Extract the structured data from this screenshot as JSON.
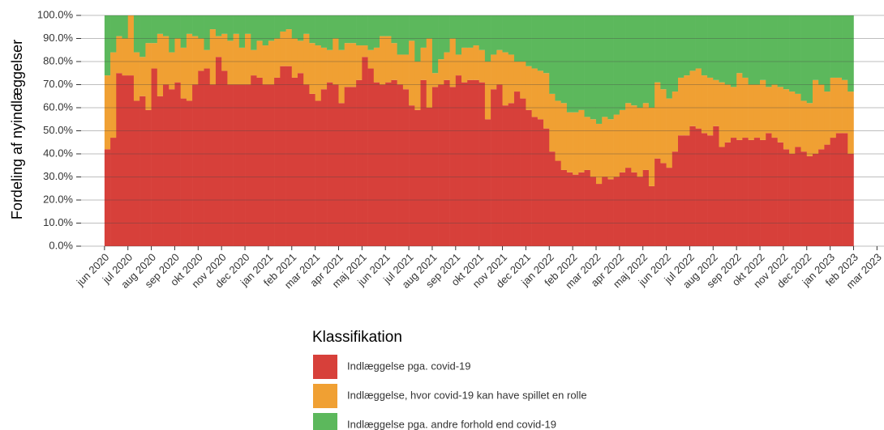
{
  "chart_data": {
    "type": "stacked-bar",
    "y_label": "Fordeling af nyindlæggelser",
    "legend_title": "Klassifikation",
    "legend_position": "bottom",
    "grid": true,
    "ylim": [
      0,
      100
    ],
    "yticks": [
      {
        "value": 0,
        "label": "0.0%"
      },
      {
        "value": 10,
        "label": "10.0%"
      },
      {
        "value": 20,
        "label": "20.0%"
      },
      {
        "value": 30,
        "label": "30.0%"
      },
      {
        "value": 40,
        "label": "40.0%"
      },
      {
        "value": 50,
        "label": "50.0%"
      },
      {
        "value": 60,
        "label": "60.0%"
      },
      {
        "value": 70,
        "label": "70.0%"
      },
      {
        "value": 80,
        "label": "80.0%"
      },
      {
        "value": 90,
        "label": "90.0%"
      },
      {
        "value": 100,
        "label": "100.0%"
      }
    ],
    "xlim": [
      -1,
      33.3
    ],
    "xticks": [
      {
        "value": 0,
        "label": "jun 2020"
      },
      {
        "value": 1,
        "label": "jul 2020"
      },
      {
        "value": 2,
        "label": "aug 2020"
      },
      {
        "value": 3,
        "label": "sep 2020"
      },
      {
        "value": 4,
        "label": "okt 2020"
      },
      {
        "value": 5,
        "label": "nov 2020"
      },
      {
        "value": 6,
        "label": "dec 2020"
      },
      {
        "value": 7,
        "label": "jan 2021"
      },
      {
        "value": 8,
        "label": "feb 2021"
      },
      {
        "value": 9,
        "label": "mar 2021"
      },
      {
        "value": 10,
        "label": "apr 2021"
      },
      {
        "value": 11,
        "label": "maj 2021"
      },
      {
        "value": 12,
        "label": "jun 2021"
      },
      {
        "value": 13,
        "label": "jul 2021"
      },
      {
        "value": 14,
        "label": "aug 2021"
      },
      {
        "value": 15,
        "label": "sep 2021"
      },
      {
        "value": 16,
        "label": "okt 2021"
      },
      {
        "value": 17,
        "label": "nov 2021"
      },
      {
        "value": 18,
        "label": "dec 2021"
      },
      {
        "value": 19,
        "label": "jan 2022"
      },
      {
        "value": 20,
        "label": "feb 2022"
      },
      {
        "value": 21,
        "label": "mar 2022"
      },
      {
        "value": 22,
        "label": "apr 2022"
      },
      {
        "value": 23,
        "label": "maj 2022"
      },
      {
        "value": 24,
        "label": "jun 2022"
      },
      {
        "value": 25,
        "label": "jul 2022"
      },
      {
        "value": 26,
        "label": "aug 2022"
      },
      {
        "value": 27,
        "label": "sep 2022"
      },
      {
        "value": 28,
        "label": "okt 2022"
      },
      {
        "value": 29,
        "label": "nov 2022"
      },
      {
        "value": 30,
        "label": "dec 2022"
      },
      {
        "value": 31,
        "label": "jan 2023"
      },
      {
        "value": 32,
        "label": "feb 2023"
      },
      {
        "value": 33,
        "label": "mar 2023"
      }
    ],
    "x": [
      0,
      0.25,
      0.5,
      0.75,
      1,
      1.25,
      1.5,
      1.75,
      2,
      2.25,
      2.5,
      2.75,
      3,
      3.25,
      3.5,
      3.75,
      4,
      4.25,
      4.5,
      4.75,
      5,
      5.25,
      5.5,
      5.75,
      6,
      6.25,
      6.5,
      6.75,
      7,
      7.25,
      7.5,
      7.75,
      8,
      8.25,
      8.5,
      8.75,
      9,
      9.25,
      9.5,
      9.75,
      10,
      10.25,
      10.5,
      10.75,
      11,
      11.25,
      11.5,
      11.75,
      12,
      12.25,
      12.5,
      12.75,
      13,
      13.25,
      13.5,
      13.75,
      14,
      14.25,
      14.5,
      14.75,
      15,
      15.25,
      15.5,
      15.75,
      16,
      16.25,
      16.5,
      16.75,
      17,
      17.25,
      17.5,
      17.75,
      18,
      18.25,
      18.5,
      18.75,
      19,
      19.25,
      19.5,
      19.75,
      20,
      20.25,
      20.5,
      20.75,
      21,
      21.25,
      21.5,
      21.75,
      22,
      22.25,
      22.5,
      22.75,
      23,
      23.25,
      23.5,
      23.75,
      24,
      24.25,
      24.5,
      24.75,
      25,
      25.25,
      25.5,
      25.75,
      26,
      26.25,
      26.5,
      26.75,
      27,
      27.25,
      27.5,
      27.75,
      28,
      28.25,
      28.5,
      28.75,
      29,
      29.25,
      29.5,
      29.75,
      30,
      30.25,
      30.5,
      30.75,
      31,
      31.25,
      31.5,
      31.75
    ],
    "series": [
      {
        "name": "Indlæggelse pga. covid-19",
        "color": "#d7403a",
        "values": [
          42,
          47,
          75,
          74,
          74,
          63,
          65,
          59,
          77,
          65,
          70,
          68,
          71,
          64,
          63,
          70,
          76,
          77,
          70,
          82,
          76,
          70,
          70,
          70,
          70,
          74,
          73,
          70,
          70,
          73,
          78,
          78,
          73,
          75,
          70,
          66,
          63,
          68,
          71,
          70,
          62,
          69,
          69,
          72,
          82,
          77,
          71,
          70,
          71,
          72,
          70,
          68,
          61,
          59,
          72,
          60,
          69,
          70,
          72,
          69,
          74,
          71,
          72,
          72,
          71,
          55,
          68,
          70,
          61,
          62,
          67,
          64,
          59,
          56,
          55,
          51,
          41,
          37,
          33,
          32,
          31,
          32,
          33,
          30,
          27,
          30,
          29,
          30,
          32,
          34,
          32,
          30,
          33,
          26,
          38,
          36,
          34,
          41,
          48,
          48,
          52,
          51,
          49,
          48,
          52,
          43,
          45,
          47,
          46,
          47,
          46,
          47,
          46,
          49,
          47,
          45,
          42,
          40,
          43,
          41,
          39,
          40,
          42,
          44,
          47,
          49,
          49,
          40
        ]
      },
      {
        "name": "Indlæggelse, hvor covid-19 kan have spillet en rolle",
        "color": "#f0a033",
        "values": [
          32,
          37,
          16,
          16,
          26,
          21,
          17,
          29,
          11,
          27,
          21,
          16,
          19,
          22,
          29,
          21,
          14,
          8,
          24,
          9,
          16,
          19,
          22,
          16,
          22,
          11,
          16,
          17,
          19,
          17,
          15,
          16,
          17,
          14,
          22,
          22,
          24,
          18,
          14,
          20,
          23,
          19,
          19,
          15,
          5,
          8,
          15,
          21,
          20,
          16,
          13,
          15,
          28,
          21,
          14,
          30,
          6,
          11,
          12,
          21,
          9,
          15,
          14,
          15,
          14,
          25,
          15,
          15,
          23,
          21,
          13,
          16,
          19,
          21,
          21,
          24,
          25,
          26,
          29,
          26,
          27,
          27,
          23,
          25,
          26,
          26,
          26,
          27,
          27,
          28,
          29,
          30,
          29,
          34,
          33,
          32,
          30,
          26,
          25,
          26,
          24,
          26,
          25,
          25,
          20,
          28,
          25,
          22,
          29,
          26,
          24,
          23,
          26,
          20,
          23,
          24,
          26,
          27,
          23,
          22,
          23,
          32,
          28,
          23,
          26,
          24,
          23,
          27
        ]
      },
      {
        "name": "Indlæggelse pga. andre forhold end covid-19",
        "color": "#5cb85c",
        "values": [
          26,
          16,
          9,
          10,
          0,
          16,
          18,
          12,
          12,
          8,
          9,
          16,
          10,
          14,
          8,
          9,
          10,
          15,
          6,
          9,
          8,
          11,
          8,
          14,
          8,
          15,
          11,
          13,
          11,
          10,
          7,
          6,
          10,
          11,
          8,
          12,
          13,
          14,
          15,
          10,
          15,
          12,
          12,
          13,
          13,
          15,
          14,
          9,
          9,
          12,
          17,
          17,
          11,
          20,
          14,
          10,
          25,
          19,
          16,
          10,
          17,
          14,
          14,
          13,
          15,
          20,
          17,
          15,
          16,
          17,
          20,
          20,
          22,
          23,
          24,
          25,
          34,
          37,
          38,
          42,
          42,
          41,
          44,
          45,
          47,
          44,
          45,
          43,
          41,
          38,
          39,
          40,
          38,
          40,
          29,
          32,
          36,
          33,
          27,
          26,
          24,
          23,
          26,
          27,
          28,
          29,
          30,
          31,
          25,
          27,
          30,
          30,
          28,
          31,
          30,
          31,
          32,
          33,
          34,
          37,
          38,
          28,
          30,
          33,
          27,
          27,
          28,
          33
        ]
      }
    ]
  }
}
